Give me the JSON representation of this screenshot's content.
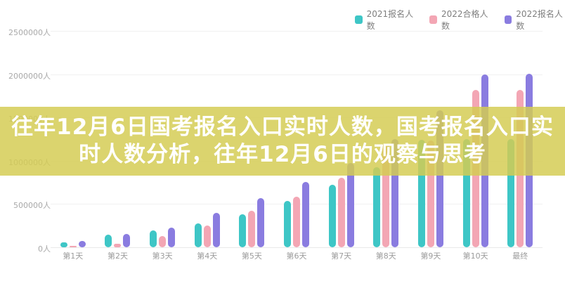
{
  "banner": {
    "line1": "往年12月6日国考报名入口实时人数，国考报名入口实",
    "line2": "时人数分析，往年12月6日的观察与思考",
    "background_color": "#d9d267",
    "text_color": "#ffffff"
  },
  "chart_data": {
    "type": "bar",
    "title": "",
    "categories": [
      "第1天",
      "第2天",
      "第3天",
      "第4天",
      "第5天",
      "第6天",
      "第7天",
      "第8天",
      "第9天",
      "第10天",
      "最终"
    ],
    "series": [
      {
        "name": "2021报名人数",
        "color": "#3ec6c6",
        "values": [
          60000,
          145000,
          195000,
          275000,
          380000,
          535000,
          725000,
          925000,
          1245000,
          1250000,
          1250000
        ]
      },
      {
        "name": "2022合格人数",
        "color": "#f3a6b4",
        "values": [
          10000,
          40000,
          130000,
          250000,
          420000,
          585000,
          805000,
          1200000,
          1235000,
          1815000,
          1820000
        ]
      },
      {
        "name": "2022报名人数",
        "color": "#8a7ce0",
        "values": [
          75000,
          155000,
          230000,
          400000,
          570000,
          755000,
          975000,
          1250000,
          1585000,
          2000000,
          2005000
        ]
      }
    ],
    "y_ticks": [
      "0人",
      "500000人",
      "1000000人",
      "1500000人",
      "2000000人",
      "2500000人"
    ],
    "ylim": [
      0,
      2500000
    ],
    "y_tick_interval": 500000,
    "grid": true,
    "legend_position": "top-right",
    "xlabel": "",
    "ylabel": ""
  }
}
